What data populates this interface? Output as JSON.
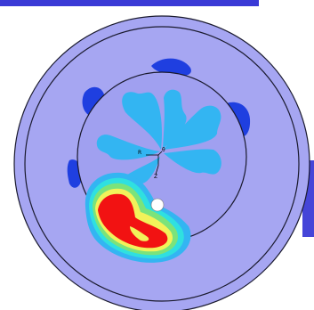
{
  "colors": {
    "background": "#ffffff",
    "bar": "#3a3ad6",
    "outer_fill": "#a6a6f2",
    "inner_fill": "#a0a0f0",
    "ring_stroke": "#1a1a2e",
    "low_dark": "#1f3fe0",
    "low_light": "#33b5f2",
    "mid_cyan": "#2fe0e0",
    "mid_green": "#7be37b",
    "mid_yellow": "#f2f25a",
    "high_red": "#f21212"
  },
  "icons": {
    "coordinate_axes": "triad-icon",
    "white_marker": "circle-marker-icon"
  },
  "axes_labels": {
    "r": "R",
    "theta": "θ",
    "z": "Z"
  }
}
